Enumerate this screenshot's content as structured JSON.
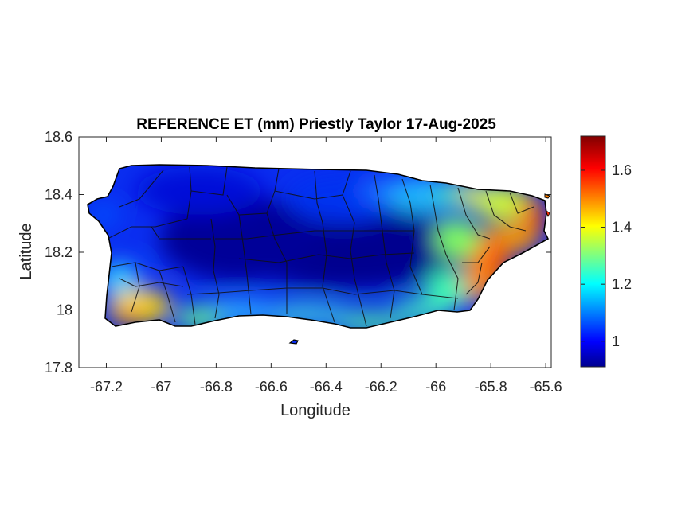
{
  "title": "REFERENCE ET (mm) Priestly Taylor 17-Aug-2025",
  "map": {
    "xlabel": "Longitude",
    "ylabel": "Latitude",
    "xlim": [
      -67.3,
      -65.58
    ],
    "ylim": [
      17.8,
      18.6
    ],
    "xticks": [
      -67.2,
      -67,
      -66.8,
      -66.6,
      -66.4,
      -66.2,
      -66,
      -65.8,
      -65.6
    ],
    "xtick_labels": [
      "-67.2",
      "-67",
      "-66.8",
      "-66.6",
      "-66.4",
      "-66.2",
      "-66",
      "-65.8",
      "-65.6"
    ],
    "yticks": [
      17.8,
      18,
      18.2,
      18.4,
      18.6
    ],
    "ytick_labels": [
      "17.8",
      "18",
      "18.2",
      "18.4",
      "18.6"
    ],
    "grid": false,
    "colormap": "jet"
  },
  "colorbar": {
    "range": [
      0.91,
      1.72
    ],
    "ticks": [
      1,
      1.2,
      1.4,
      1.6
    ],
    "tick_labels": [
      "1",
      "1.2",
      "1.4",
      "1.6"
    ]
  },
  "colors": {
    "boundary": "#000000",
    "axis": "#262626",
    "background": "#ffffff"
  }
}
